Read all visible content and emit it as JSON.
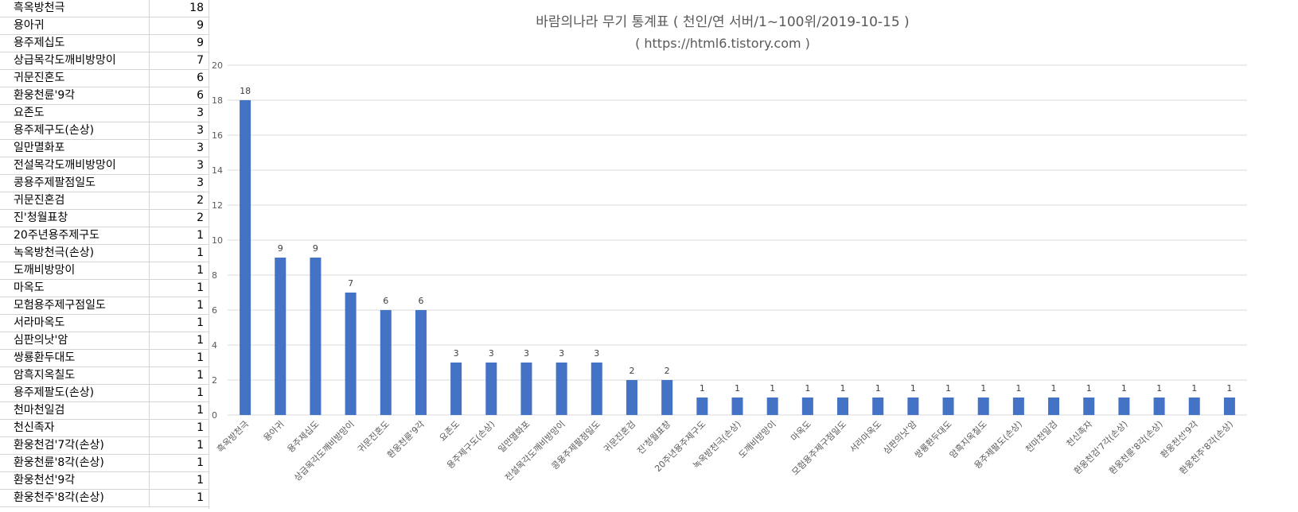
{
  "table": {
    "rows": [
      {
        "name": "흑옥방천극",
        "count": "18"
      },
      {
        "name": "용아귀",
        "count": "9"
      },
      {
        "name": "용주제십도",
        "count": "9"
      },
      {
        "name": "상급목각도깨비방망이",
        "count": "7"
      },
      {
        "name": "귀문진혼도",
        "count": "6"
      },
      {
        "name": "환웅천륜'9각",
        "count": "6"
      },
      {
        "name": "요존도",
        "count": "3"
      },
      {
        "name": "용주제구도(손상)",
        "count": "3"
      },
      {
        "name": "일만멸화포",
        "count": "3"
      },
      {
        "name": "전설목각도깨비방망이",
        "count": "3"
      },
      {
        "name": "콩용주제팔점일도",
        "count": "3"
      },
      {
        "name": "귀문진혼검",
        "count": "2"
      },
      {
        "name": "진'청월표창",
        "count": "2"
      },
      {
        "name": "20주년용주제구도",
        "count": "1"
      },
      {
        "name": "녹옥방천극(손상)",
        "count": "1"
      },
      {
        "name": "도깨비방망이",
        "count": "1"
      },
      {
        "name": "마옥도",
        "count": "1"
      },
      {
        "name": "모험용주제구점일도",
        "count": "1"
      },
      {
        "name": "서라마옥도",
        "count": "1"
      },
      {
        "name": "심판의낫'암",
        "count": "1"
      },
      {
        "name": "쌍룡환두대도",
        "count": "1"
      },
      {
        "name": "암흑지옥칠도",
        "count": "1"
      },
      {
        "name": "용주제팔도(손상)",
        "count": "1"
      },
      {
        "name": "천마천일검",
        "count": "1"
      },
      {
        "name": "천신족자",
        "count": "1"
      },
      {
        "name": "환웅천검'7각(손상)",
        "count": "1"
      },
      {
        "name": "환웅천륜'8각(손상)",
        "count": "1"
      },
      {
        "name": "환웅천선'9각",
        "count": "1"
      },
      {
        "name": "환웅천주'8각(손상)",
        "count": "1"
      }
    ]
  },
  "chart_data": {
    "type": "bar",
    "title": "바람의나라 무기 통계표 ( 천인/연 서버/1~100위/2019-10-15 )",
    "subtitle": "( https://html6.tistory.com )",
    "xlabel": "",
    "ylabel": "",
    "ylim": [
      0,
      20
    ],
    "yticks": [
      "0",
      "2",
      "4",
      "6",
      "8",
      "10",
      "12",
      "14",
      "16",
      "18",
      "20"
    ],
    "grid": true,
    "bar_color": "#4472c4",
    "categories": [
      "흑옥방천극",
      "용아귀",
      "용주제십도",
      "상급목각도깨비방망이",
      "귀문진혼도",
      "환웅천륜'9각",
      "요존도",
      "용주제구도(손상)",
      "일만멸화포",
      "전설목각도깨비방망이",
      "콩용주제팔점일도",
      "귀문진혼검",
      "진'청월표창",
      "20주년용주제구도",
      "녹옥방천극(손상)",
      "도깨비방망이",
      "마옥도",
      "모험용주제구점일도",
      "서라마옥도",
      "심판의낫'암",
      "쌍룡환두대도",
      "암흑지옥칠도",
      "용주제팔도(손상)",
      "천마천일검",
      "천신족자",
      "환웅천검'7각(손상)",
      "환웅천륜'8각(손상)",
      "환웅천선'9각",
      "환웅천주'8각(손상)"
    ],
    "values": [
      18,
      9,
      9,
      7,
      6,
      6,
      3,
      3,
      3,
      3,
      3,
      2,
      2,
      1,
      1,
      1,
      1,
      1,
      1,
      1,
      1,
      1,
      1,
      1,
      1,
      1,
      1,
      1,
      1
    ]
  }
}
